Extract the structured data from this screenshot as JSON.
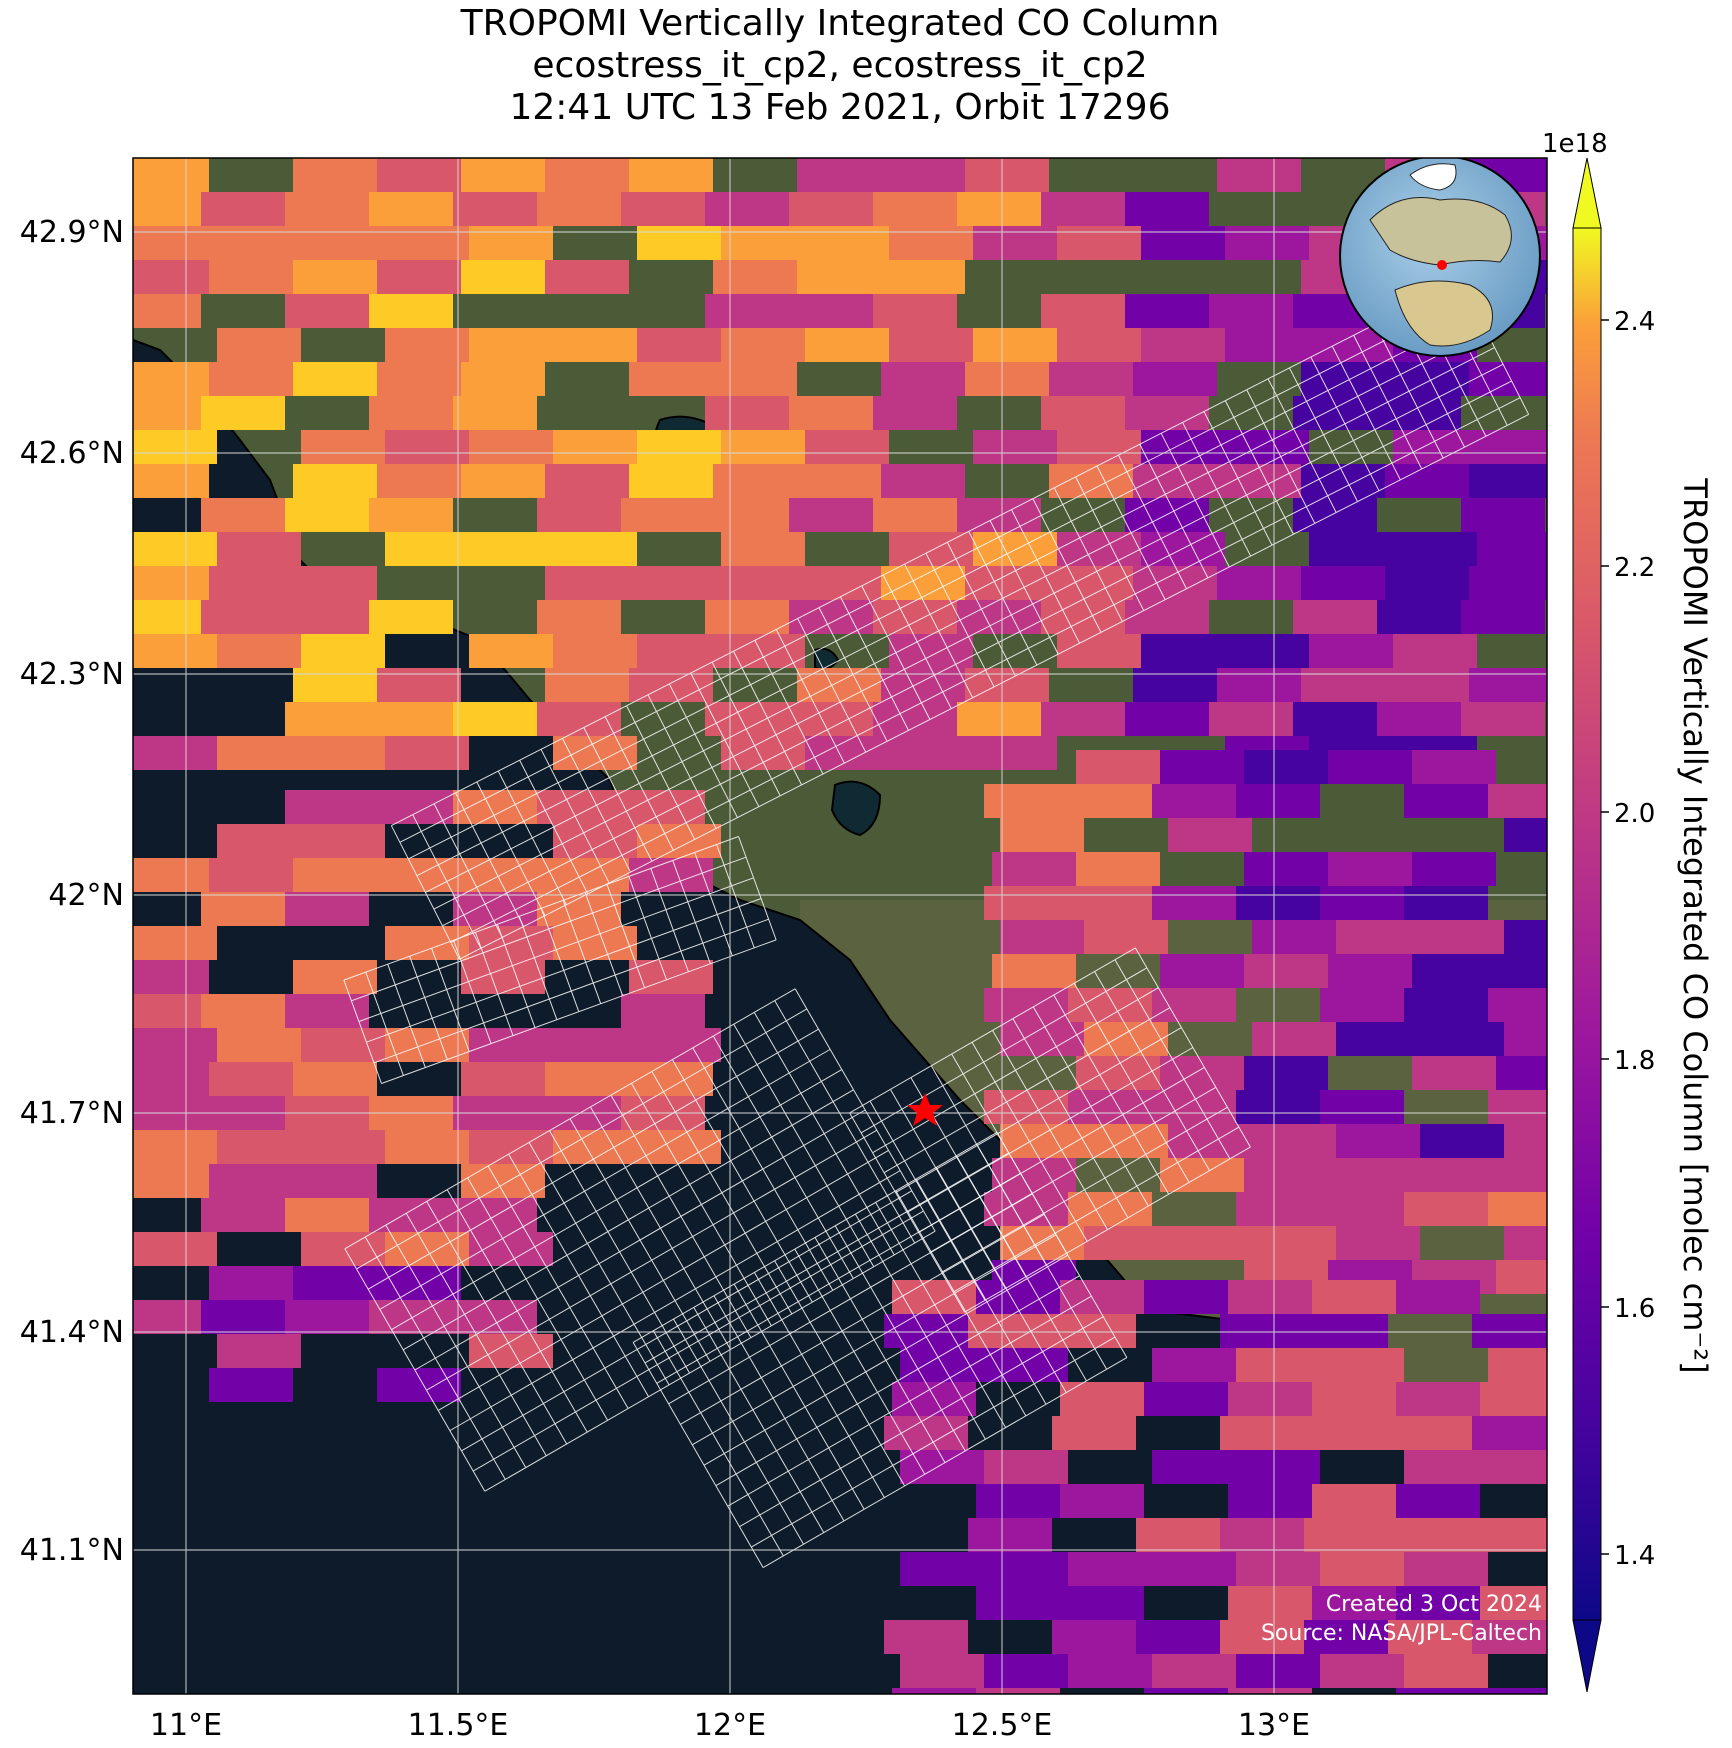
{
  "title": {
    "line1": "TROPOMI Vertically Integrated CO Column",
    "line2": "ecostress_it_cp2, ecostress_it_cp2",
    "line3": "12:41 UTC 13 Feb 2021, Orbit 17296"
  },
  "colorbar": {
    "label": "TROPOMI Vertically Integrated CO Column [molec cm⁻²]",
    "exponent": "1e18",
    "ticks": [
      "2.4",
      "2.2",
      "2.0",
      "1.8",
      "1.6",
      "1.4"
    ],
    "range": [
      1.33,
      2.47
    ],
    "colormap": "plasma"
  },
  "axes": {
    "lon_ticks": [
      "11°E",
      "11.5°E",
      "12°E",
      "12.5°E",
      "13°E"
    ],
    "lat_ticks": [
      "42.9°N",
      "42.6°N",
      "42.3°N",
      "42°N",
      "41.7°N",
      "41.4°N",
      "41.1°N"
    ],
    "lon_range": [
      10.9,
      13.5
    ],
    "lat_range": [
      40.92,
      43.0
    ],
    "grid": true
  },
  "marker": {
    "name": "site-star",
    "lon": 12.36,
    "lat": 41.7,
    "color": "#ff0000"
  },
  "inset": {
    "type": "globe",
    "marker_color": "#ff0000"
  },
  "footer": {
    "created": "Created 3 Oct 2024",
    "source": "Source: NASA/JPL-Caltech"
  },
  "colors": {
    "ocean": "#0d1b2a",
    "grid": "#d9d9d9",
    "coast": "#000000",
    "swath": "#ffffff"
  }
}
